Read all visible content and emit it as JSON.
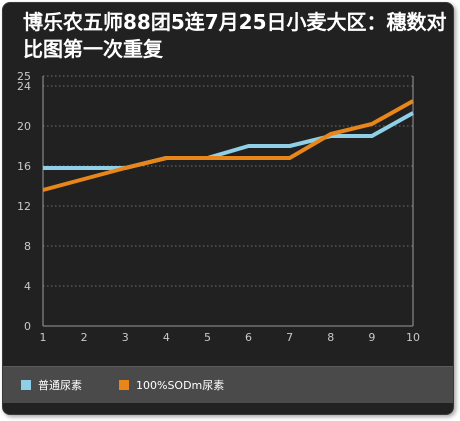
{
  "chart_data": {
    "type": "line",
    "title": "博乐农五师88团5连7月25日小麦大区：穗数对比图第一次重复",
    "x": [
      1,
      2,
      3,
      4,
      5,
      6,
      7,
      8,
      9,
      10
    ],
    "x_ticks": [
      "1",
      "2",
      "3",
      "4",
      "5",
      "6",
      "7",
      "8",
      "9",
      "10"
    ],
    "y_ticks": [
      "0",
      "4",
      "8",
      "12",
      "16",
      "20",
      "24",
      "25"
    ],
    "ylim": [
      0,
      25
    ],
    "grid": true,
    "legend_position": "bottom",
    "series": [
      {
        "name": "普通尿素",
        "color": "#8fd0e8",
        "values": [
          15.8,
          15.8,
          15.8,
          16.8,
          16.8,
          18,
          18,
          19,
          19,
          21.3
        ]
      },
      {
        "name": "100%SODm尿素",
        "color": "#e8861a",
        "values": [
          13.6,
          14.7,
          15.8,
          16.8,
          16.8,
          16.8,
          16.8,
          19.2,
          20.2,
          22.5
        ]
      }
    ]
  }
}
